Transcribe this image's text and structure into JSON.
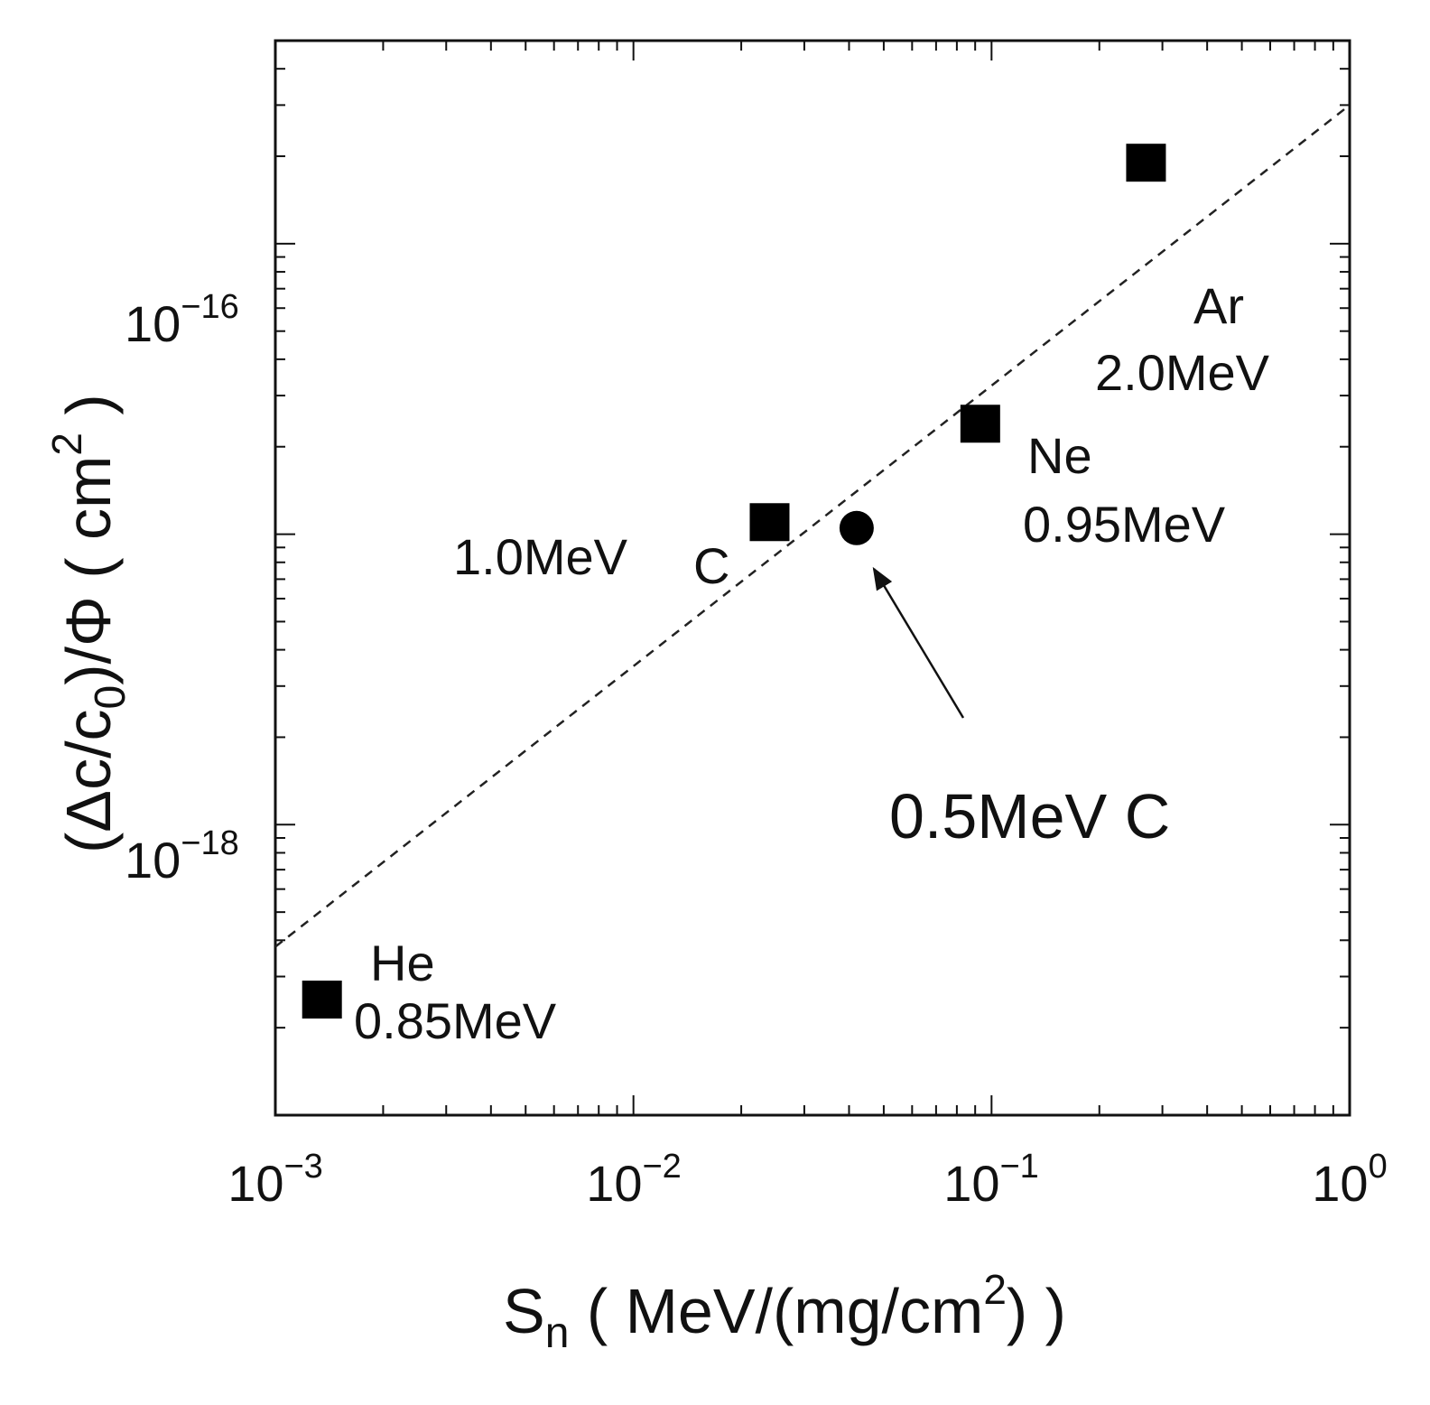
{
  "chart_data": {
    "type": "scatter",
    "xscale": "log",
    "yscale": "log",
    "xlim": [
      0.001,
      1
    ],
    "ylim": [
      1e-19,
      5e-16
    ],
    "x_tick_labels": [
      {
        "base": "10",
        "exp": "−3"
      },
      {
        "base": "10",
        "exp": "−2"
      },
      {
        "base": "10",
        "exp": "−1"
      },
      {
        "base": "10",
        "exp": "0"
      }
    ],
    "y_tick_labels": [
      {
        "base": "10",
        "exp": "−16"
      },
      {
        "base": "10",
        "exp": "−18"
      }
    ],
    "xlabel": {
      "pre": "S",
      "sub": "n",
      "mid": " ( MeV/(mg/cm",
      "sup": "2",
      "post": ") )"
    },
    "ylabel": {
      "pre": "(Δc/c",
      "sub": "0",
      "mid": ")/Φ   ( cm",
      "sup": "2",
      "post": " )"
    },
    "series": [
      {
        "name": "squares",
        "marker": "square",
        "points": [
          {
            "x": 0.00135,
            "y": 2.5e-19,
            "ion": "He",
            "energy": "0.85MeV"
          },
          {
            "x": 0.024,
            "y": 1.1e-17,
            "ion": "C",
            "energy": "1.0MeV"
          },
          {
            "x": 0.093,
            "y": 2.4e-17,
            "ion": "Ne",
            "energy": "0.95MeV"
          },
          {
            "x": 0.27,
            "y": 1.9e-16,
            "ion": "Ar",
            "energy": "2.0MeV"
          }
        ]
      },
      {
        "name": "circle",
        "marker": "circle",
        "points": [
          {
            "x": 0.042,
            "y": 1.05e-17
          }
        ]
      }
    ],
    "fit_line": {
      "style": "dashed",
      "x": [
        0.001,
        1
      ],
      "y": [
        3.8e-19,
        3e-16
      ]
    },
    "annotation": {
      "text": "0.5MeV C",
      "point_x": 0.042,
      "point_y": 1.05e-17
    }
  }
}
